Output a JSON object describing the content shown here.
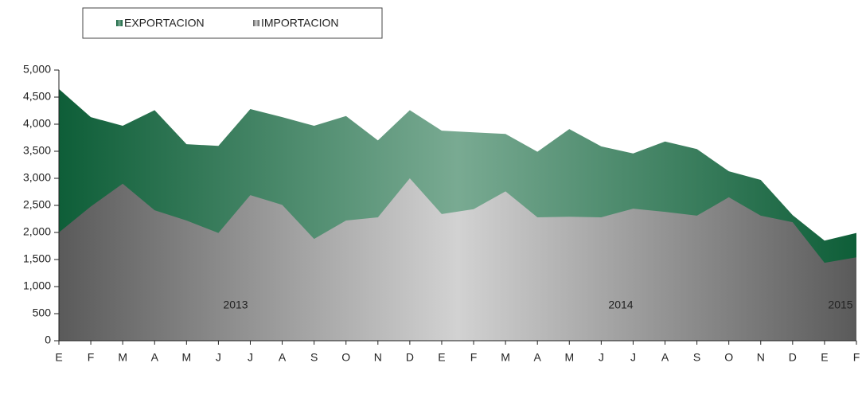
{
  "chart_data": {
    "type": "area",
    "categories": [
      "E",
      "F",
      "M",
      "A",
      "M",
      "J",
      "J",
      "A",
      "S",
      "O",
      "N",
      "D",
      "E",
      "F",
      "M",
      "A",
      "M",
      "J",
      "J",
      "A",
      "S",
      "O",
      "N",
      "D",
      "E",
      "F"
    ],
    "series": [
      {
        "name": "EXPORTACION",
        "color": "#0e5e38",
        "values": [
          4650,
          4130,
          3970,
          4260,
          3630,
          3600,
          4280,
          4130,
          3970,
          4150,
          3700,
          4260,
          3880,
          3850,
          3820,
          3490,
          3910,
          3590,
          3460,
          3680,
          3540,
          3130,
          2970,
          2320,
          1850,
          1990
        ]
      },
      {
        "name": "IMPORTACION",
        "color": "#5a5a5a",
        "values": [
          2000,
          2480,
          2900,
          2410,
          2220,
          1990,
          2690,
          2510,
          1880,
          2220,
          2280,
          3000,
          2340,
          2430,
          2760,
          2280,
          2290,
          2280,
          2440,
          2380,
          2310,
          2650,
          2310,
          2190,
          1440,
          1540
        ]
      }
    ],
    "years": [
      "2013",
      "2014",
      "2015"
    ],
    "ylim": [
      0,
      5000
    ],
    "yticks": [
      0,
      {
        "value": 500,
        "label": "500"
      },
      {
        "value": 1000,
        "label": "1,000"
      },
      {
        "value": 1500,
        "label": "1,500"
      },
      {
        "value": 2000,
        "label": "2,000"
      },
      {
        "value": 2500,
        "label": "2,500"
      },
      {
        "value": 3000,
        "label": "3,000"
      },
      {
        "value": 3500,
        "label": "3,500"
      },
      {
        "value": 4000,
        "label": "4,000"
      },
      {
        "value": 4500,
        "label": "4,500"
      },
      {
        "value": 5000,
        "label": "5,000"
      }
    ]
  }
}
